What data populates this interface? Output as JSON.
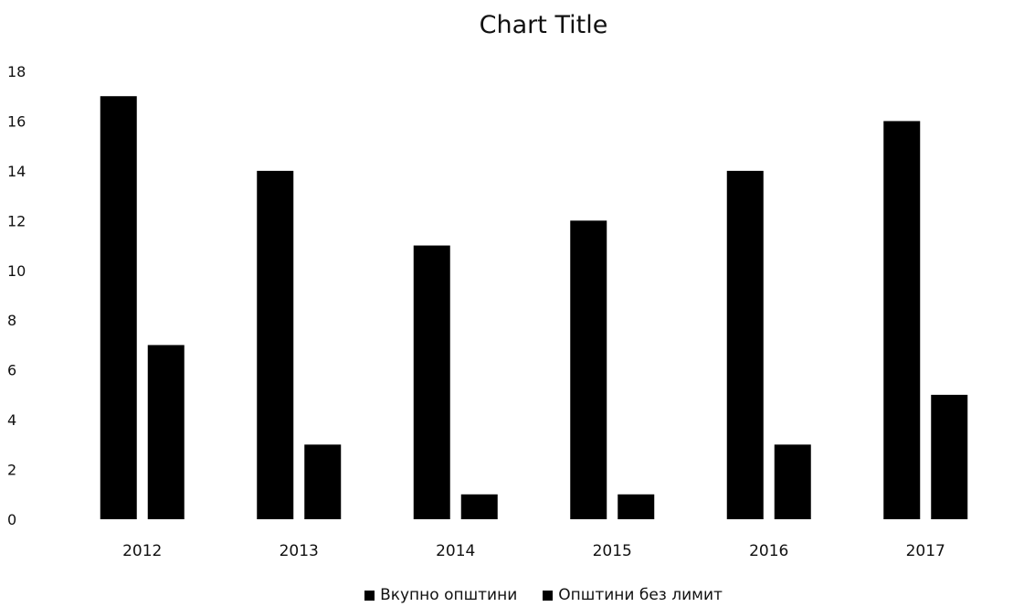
{
  "chart_data": {
    "type": "bar",
    "title": "Chart Title",
    "categories": [
      "2012",
      "2013",
      "2014",
      "2015",
      "2016",
      "2017"
    ],
    "series": [
      {
        "name": "Вкупно општини",
        "values": [
          17,
          14,
          11,
          12,
          14,
          16
        ],
        "color": "#000000"
      },
      {
        "name": "Општини без лимит",
        "values": [
          7,
          3,
          1,
          1,
          3,
          5
        ],
        "color": "#000000"
      }
    ],
    "yticks": [
      "0",
      "2",
      "4",
      "6",
      "8",
      "10",
      "12",
      "14",
      "16",
      "18"
    ],
    "ylim": [
      0,
      18
    ],
    "xlabel": "",
    "ylabel": "",
    "grid": false,
    "legend_position": "bottom"
  }
}
